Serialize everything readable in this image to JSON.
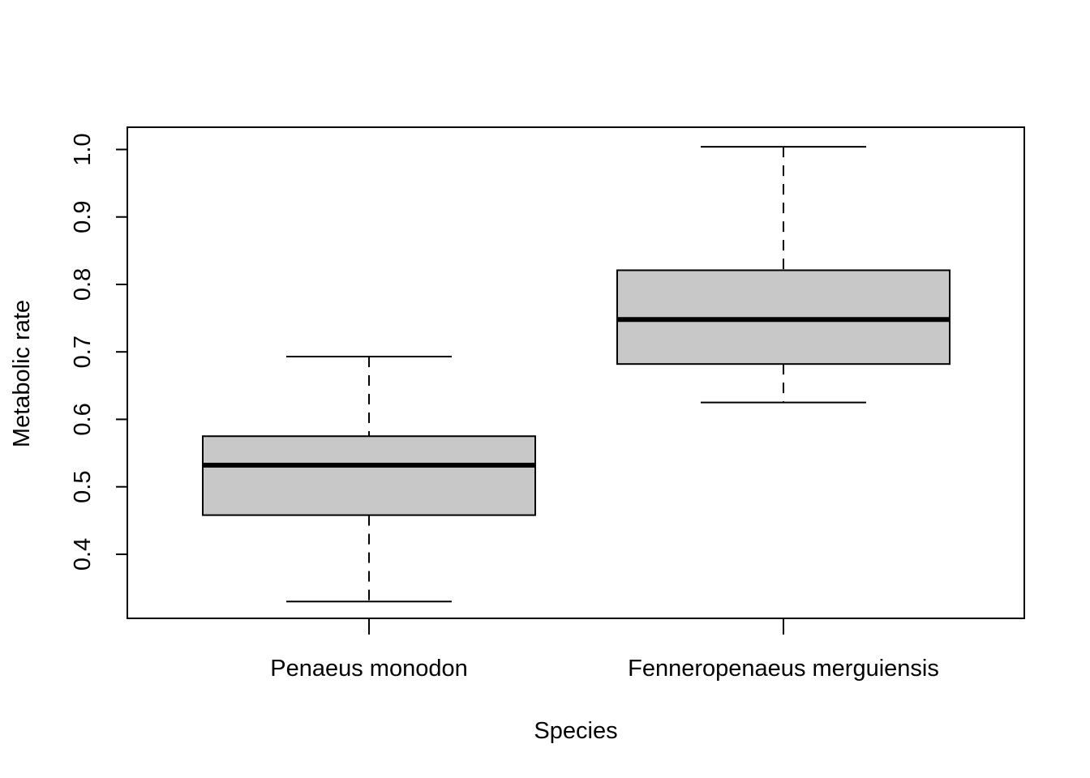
{
  "chart_data": {
    "type": "boxplot",
    "title": "",
    "xlabel": "Species",
    "ylabel": "Metabolic rate",
    "ylim": [
      0.305,
      1.033
    ],
    "yticks": [
      0.4,
      0.5,
      0.6,
      0.7,
      0.8,
      0.9,
      1.0
    ],
    "ytick_labels": [
      "0.4",
      "0.5",
      "0.6",
      "0.7",
      "0.8",
      "0.9",
      "1.0"
    ],
    "grid": false,
    "box_color": "#c8c8c8",
    "categories": [
      "Penaeus monodon",
      "Fenneropenaeus merguiensis"
    ],
    "boxes": [
      {
        "category": "Penaeus monodon",
        "min": 0.33,
        "q1": 0.458,
        "median": 0.532,
        "q3": 0.575,
        "max": 0.693
      },
      {
        "category": "Fenneropenaeus merguiensis",
        "min": 0.625,
        "q1": 0.682,
        "median": 0.748,
        "q3": 0.821,
        "max": 1.004
      }
    ]
  }
}
